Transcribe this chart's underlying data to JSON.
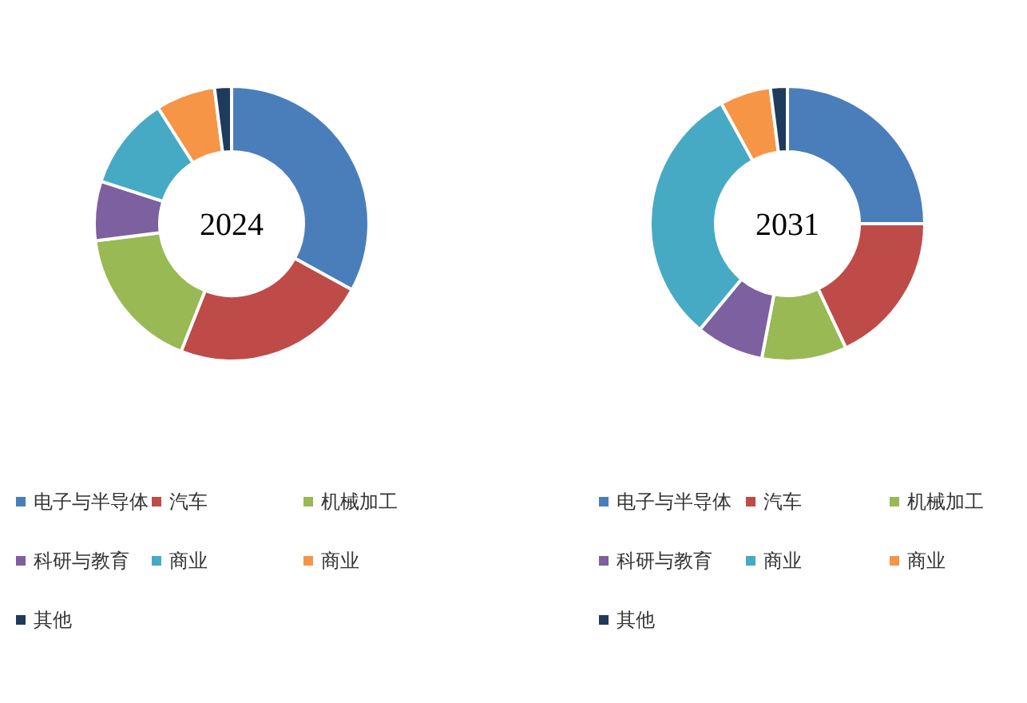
{
  "chart_data": [
    {
      "type": "donut",
      "title": "2024",
      "categories": [
        "电子与半导体",
        "汽车",
        "机械加工",
        "科研与教育",
        "商业",
        "商业",
        "其他"
      ],
      "values": [
        33,
        23,
        17,
        7,
        11,
        7,
        2
      ],
      "colors": [
        "#4a7ebb",
        "#be4b48",
        "#98b954",
        "#7d60a0",
        "#46aac5",
        "#f69545",
        "#1f3b5c"
      ],
      "legend": "bottom"
    },
    {
      "type": "donut",
      "title": "2031",
      "categories": [
        "电子与半导体",
        "汽车",
        "机械加工",
        "科研与教育",
        "商业",
        "商业",
        "其他"
      ],
      "values": [
        25,
        18,
        10,
        8,
        31,
        6,
        2
      ],
      "colors": [
        "#4a7ebb",
        "#be4b48",
        "#98b954",
        "#7d60a0",
        "#46aac5",
        "#f69545",
        "#1f3b5c"
      ],
      "legend": "bottom"
    }
  ]
}
